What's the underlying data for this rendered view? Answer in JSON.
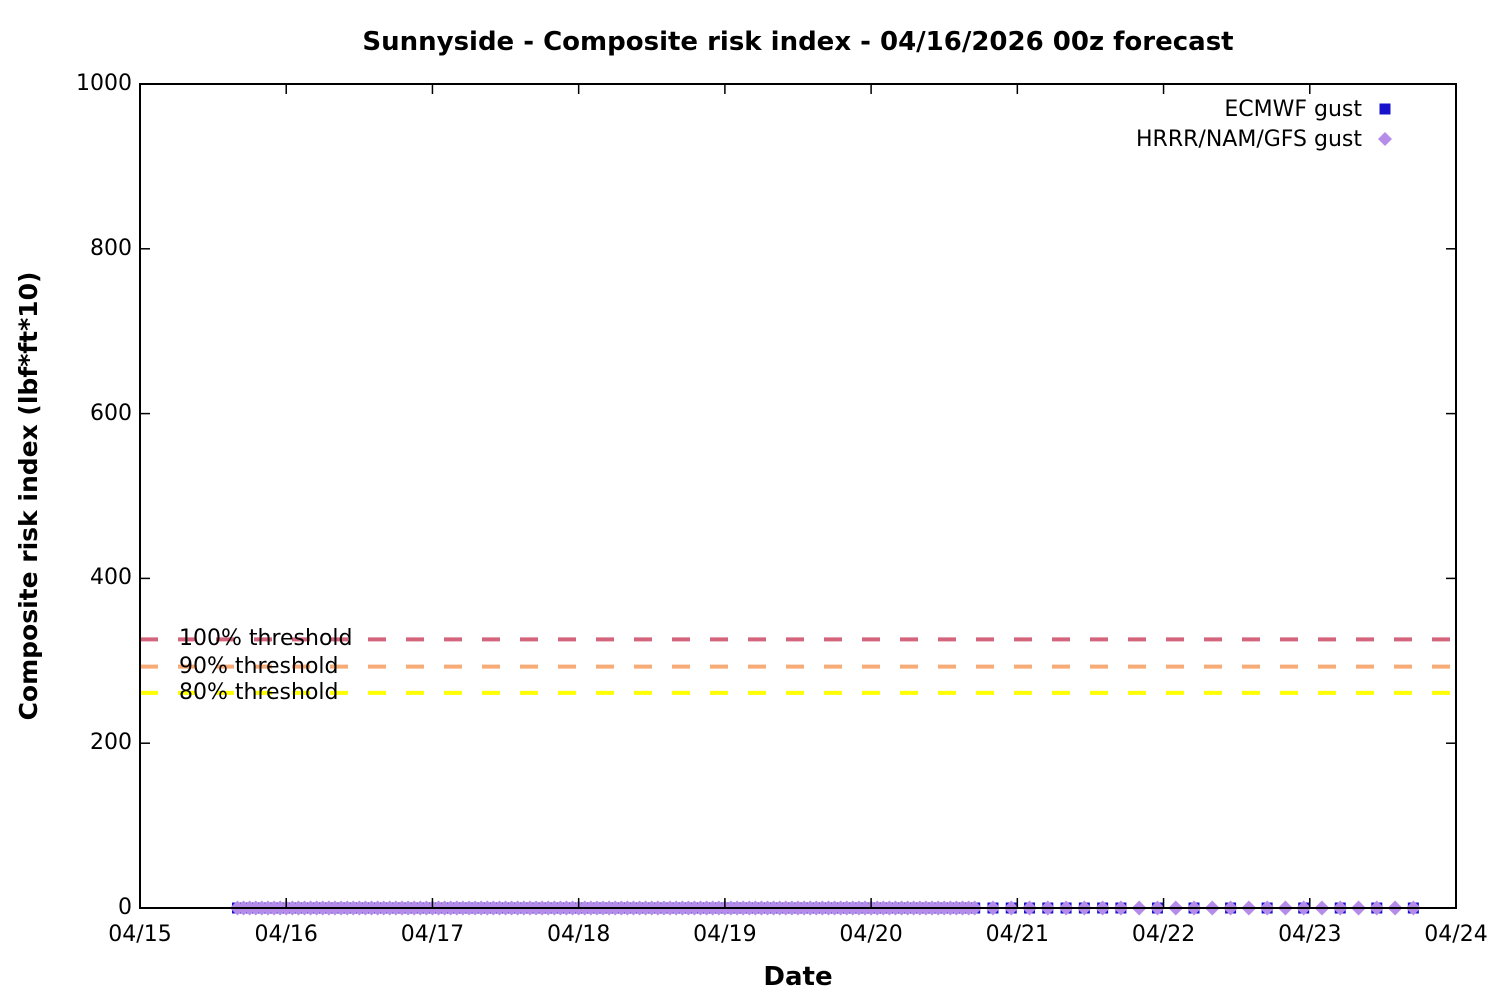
{
  "title": "Sunnyside - Composite risk index - 04/16/2026 00z forecast",
  "chart_data": {
    "type": "scatter",
    "title": "Sunnyside - Composite risk index - 04/16/2026 00z forecast",
    "xlabel": "Date",
    "ylabel": "Composite risk index (lbf*ft*10)",
    "x_axis": {
      "tick_labels": [
        "04/15",
        "04/16",
        "04/17",
        "04/18",
        "04/19",
        "04/20",
        "04/21",
        "04/22",
        "04/23",
        "04/24"
      ],
      "range_hours": [
        0,
        216
      ],
      "hours_per_tick": 24
    },
    "y_axis": {
      "ticks": [
        0,
        200,
        400,
        600,
        800,
        1000
      ],
      "range": [
        0,
        1000
      ]
    },
    "grid": "off",
    "legend_position": "top-right",
    "thresholds": [
      {
        "label": "100% threshold",
        "value": 326,
        "color": "#d4637c"
      },
      {
        "label": "90% threshold",
        "value": 293,
        "color": "#f7ab76"
      },
      {
        "label": "80% threshold",
        "value": 261,
        "color": "#ffff00"
      }
    ],
    "series": [
      {
        "name": "ECMWF gust",
        "marker": "square",
        "color": "#1812cd",
        "marker_size": 11,
        "value": 0,
        "segments": [
          {
            "start_hour": 16,
            "end_hour": 137,
            "interval_hours": 1,
            "value": 0
          },
          {
            "start_hour": 140,
            "end_hour": 161,
            "interval_hours": 3,
            "value": 0
          },
          {
            "start_hour": 167,
            "end_hour": 209,
            "interval_hours": 6,
            "value": 0
          }
        ]
      },
      {
        "name": "HRRR/NAM/GFS gust",
        "marker": "diamond",
        "color": "#b58de9",
        "marker_size": 15,
        "value": 0,
        "segments": [
          {
            "start_hour": 16,
            "end_hour": 137,
            "interval_hours": 1,
            "value": 0
          },
          {
            "start_hour": 140,
            "end_hour": 209,
            "interval_hours": 3,
            "value": 0
          }
        ]
      }
    ]
  }
}
